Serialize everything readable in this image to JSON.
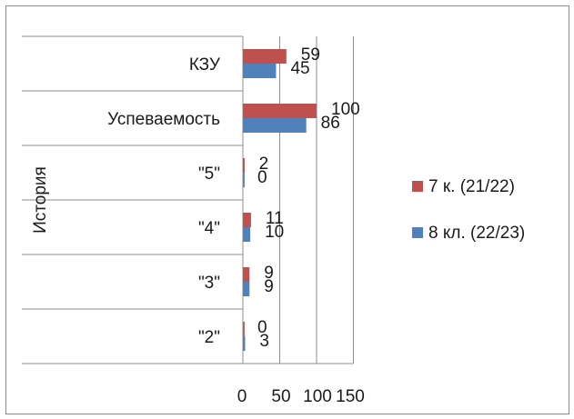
{
  "chart_data": {
    "type": "bar",
    "orientation": "horizontal",
    "group_label": "История",
    "categories": [
      "КЗУ",
      "Успеваемость",
      "\"5\"",
      "\"4\"",
      "\"3\"",
      "\"2\""
    ],
    "series": [
      {
        "name": "7 к. (21/22)",
        "color": "#c0504d",
        "values": [
          59,
          100,
          2,
          11,
          9,
          0
        ]
      },
      {
        "name": "8 кл. (22/23)",
        "color": "#4f81bd",
        "values": [
          45,
          86,
          0,
          10,
          9,
          3
        ]
      }
    ],
    "x_ticks": [
      0,
      50,
      100,
      150
    ],
    "xlim": [
      0,
      150
    ],
    "grid": true,
    "legend_position": "right"
  }
}
